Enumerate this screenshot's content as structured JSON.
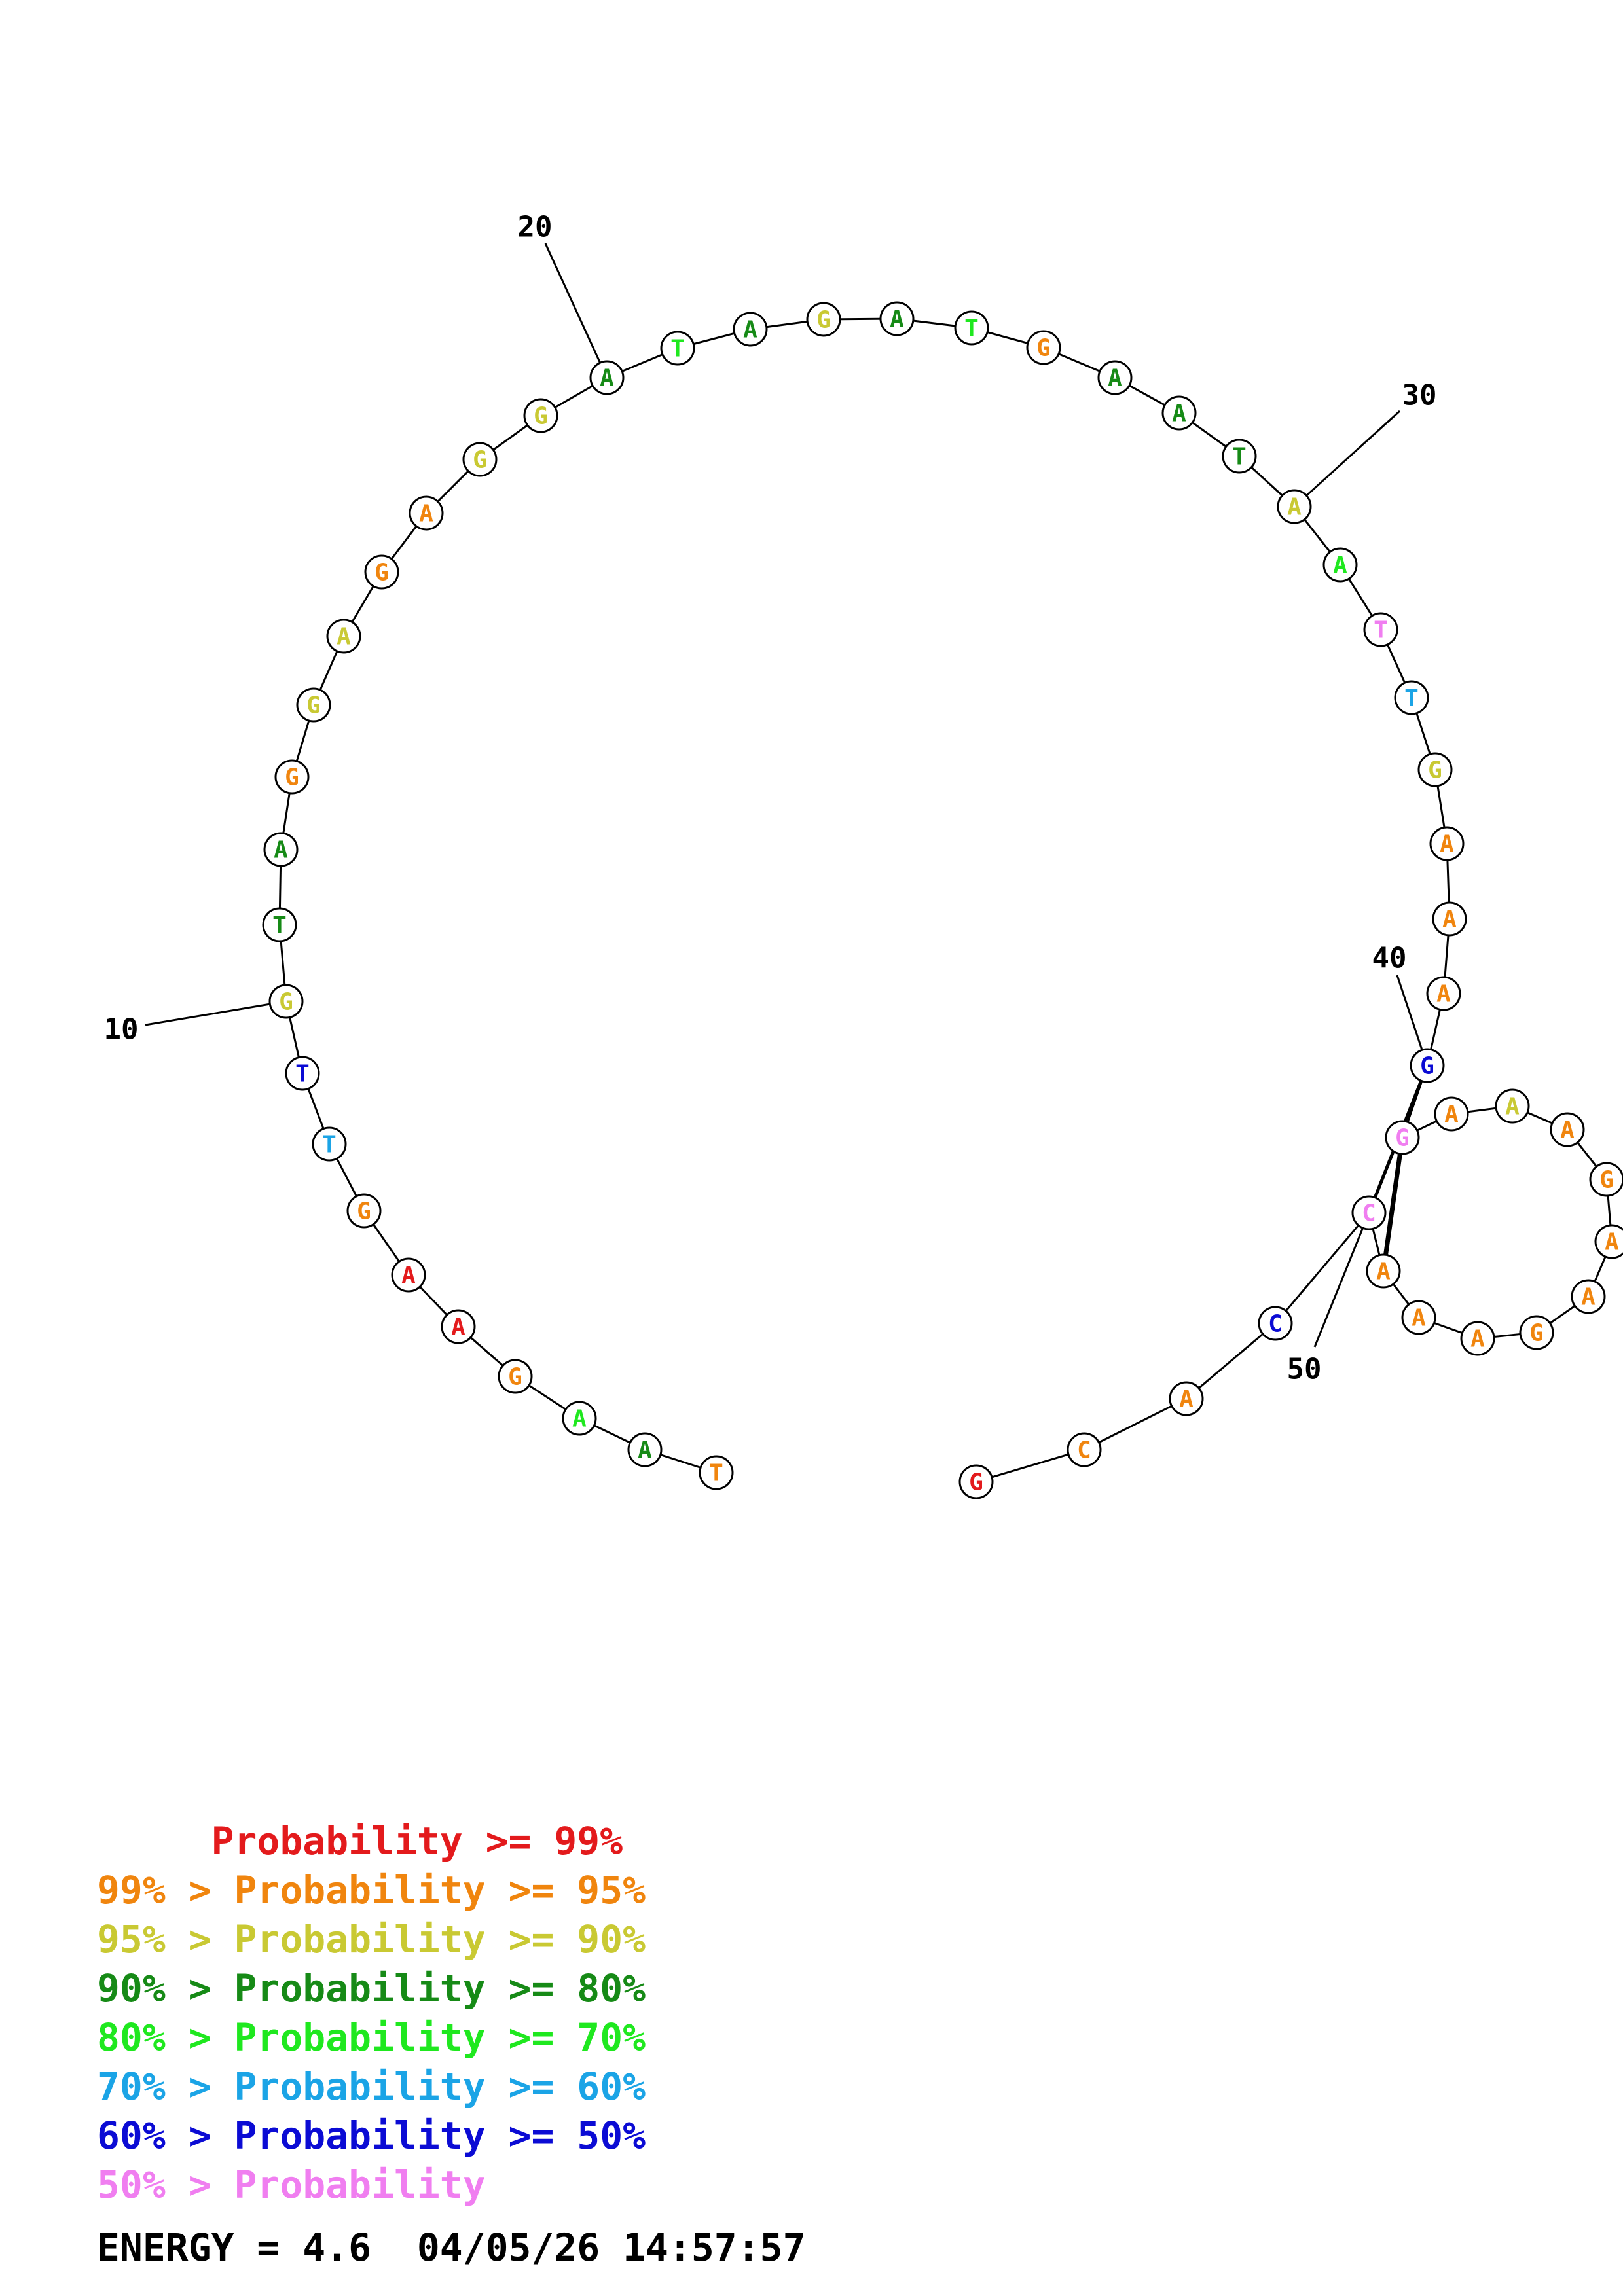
{
  "legend": [
    {
      "text": "     Probability >= 99%",
      "color": "#e31a1c"
    },
    {
      "text": "99% > Probability >= 95%",
      "color": "#f0850e"
    },
    {
      "text": "95% > Probability >= 90%",
      "color": "#c9c933"
    },
    {
      "text": "90% > Probability >= 80%",
      "color": "#168a16"
    },
    {
      "text": "80% > Probability >= 70%",
      "color": "#1fe81f"
    },
    {
      "text": "70% > Probability >= 60%",
      "color": "#1ba4e6"
    },
    {
      "text": "60% > Probability >= 50%",
      "color": "#0b0bd4"
    },
    {
      "text": "50% > Probability",
      "color": "#f07ef0"
    }
  ],
  "energy_text": "ENERGY = 4.6  04/05/26 14:57:57",
  "number_labels": [
    "10",
    "20",
    "30",
    "40",
    "50"
  ],
  "sequence": [
    {
      "base": "T",
      "color": "#f0850e"
    },
    {
      "base": "A",
      "color": "#168a16"
    },
    {
      "base": "A",
      "color": "#1fe81f"
    },
    {
      "base": "G",
      "color": "#f0850e"
    },
    {
      "base": "A",
      "color": "#e31a1c"
    },
    {
      "base": "A",
      "color": "#e31a1c"
    },
    {
      "base": "G",
      "color": "#f0850e"
    },
    {
      "base": "T",
      "color": "#1ba4e6"
    },
    {
      "base": "T",
      "color": "#0b0bd4"
    },
    {
      "base": "G",
      "color": "#c9c933"
    },
    {
      "base": "T",
      "color": "#168a16"
    },
    {
      "base": "A",
      "color": "#168a16"
    },
    {
      "base": "G",
      "color": "#f0850e"
    },
    {
      "base": "G",
      "color": "#c9c933"
    },
    {
      "base": "A",
      "color": "#c9c933"
    },
    {
      "base": "G",
      "color": "#f0850e"
    },
    {
      "base": "A",
      "color": "#f0850e"
    },
    {
      "base": "G",
      "color": "#c9c933"
    },
    {
      "base": "G",
      "color": "#c9c933"
    },
    {
      "base": "A",
      "color": "#168a16"
    },
    {
      "base": "T",
      "color": "#1fe81f"
    },
    {
      "base": "A",
      "color": "#168a16"
    },
    {
      "base": "G",
      "color": "#c9c933"
    },
    {
      "base": "A",
      "color": "#168a16"
    },
    {
      "base": "T",
      "color": "#1fe81f"
    },
    {
      "base": "G",
      "color": "#f0850e"
    },
    {
      "base": "A",
      "color": "#168a16"
    },
    {
      "base": "A",
      "color": "#168a16"
    },
    {
      "base": "T",
      "color": "#168a16"
    },
    {
      "base": "A",
      "color": "#c9c933"
    },
    {
      "base": "A",
      "color": "#1fe81f"
    },
    {
      "base": "T",
      "color": "#f07ef0"
    },
    {
      "base": "T",
      "color": "#1ba4e6"
    },
    {
      "base": "G",
      "color": "#c9c933"
    },
    {
      "base": "A",
      "color": "#f0850e"
    },
    {
      "base": "A",
      "color": "#f0850e"
    },
    {
      "base": "A",
      "color": "#f0850e"
    },
    {
      "base": "G",
      "color": "#0b0bd4"
    },
    {
      "base": "G",
      "color": "#f07ef0"
    },
    {
      "base": "A",
      "color": "#f0850e"
    },
    {
      "base": "A",
      "color": "#c9c933"
    },
    {
      "base": "A",
      "color": "#f0850e"
    },
    {
      "base": "G",
      "color": "#f0850e"
    },
    {
      "base": "A",
      "color": "#f0850e"
    },
    {
      "base": "A",
      "color": "#f0850e"
    },
    {
      "base": "G",
      "color": "#f0850e"
    },
    {
      "base": "A",
      "color": "#f0850e"
    },
    {
      "base": "A",
      "color": "#f0850e"
    },
    {
      "base": "A",
      "color": "#f0850e"
    },
    {
      "base": "C",
      "color": "#f07ef0"
    },
    {
      "base": "C",
      "color": "#0b0bd4"
    },
    {
      "base": "A",
      "color": "#f0850e"
    },
    {
      "base": "C",
      "color": "#f0850e"
    },
    {
      "base": "G",
      "color": "#e31a1c"
    }
  ]
}
